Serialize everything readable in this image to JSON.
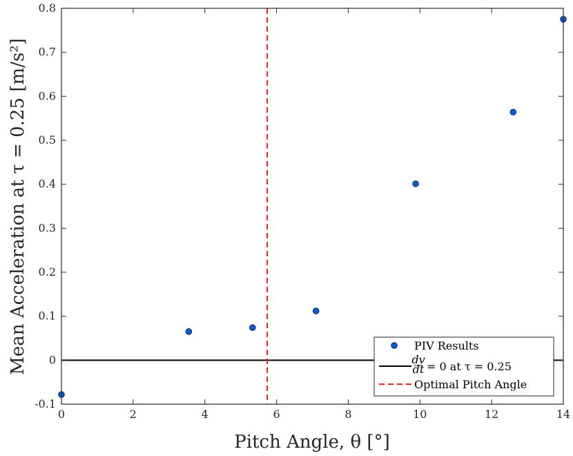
{
  "chart_data": {
    "type": "scatter",
    "xlabel": "Pitch Angle, θ [°]",
    "ylabel": "Mean Acceleration at τ = 0.25 [m/s²]",
    "xlim": [
      0,
      14
    ],
    "ylim": [
      -0.1,
      0.8
    ],
    "xticks": [
      0,
      2,
      4,
      6,
      8,
      10,
      12,
      14
    ],
    "yticks": [
      -0.1,
      0,
      0.1,
      0.2,
      0.3,
      0.4,
      0.5,
      0.6,
      0.7,
      0.8
    ],
    "xtick_labels": [
      "0",
      "2",
      "4",
      "6",
      "8",
      "10",
      "12",
      "14"
    ],
    "ytick_labels": [
      "-0.1",
      "0",
      "0.1",
      "0.2",
      "0.3",
      "0.4",
      "0.5",
      "0.6",
      "0.7",
      "0.8"
    ],
    "grid": false,
    "legend_position": "bottom-right",
    "series": [
      {
        "name": "PIV Results",
        "kind": "scatter",
        "color": "#0a5fd9",
        "x": [
          0.0,
          3.55,
          5.33,
          7.1,
          9.88,
          12.6,
          14.0
        ],
        "y": [
          -0.078,
          0.065,
          0.074,
          0.112,
          0.401,
          0.564,
          0.775
        ]
      },
      {
        "name": "dv/dt = 0 at τ = 0.25",
        "kind": "hline",
        "color": "#000000",
        "y": 0
      },
      {
        "name": "Optimal Pitch Angle",
        "kind": "vline",
        "color": "#e8231f",
        "dash": true,
        "x": 5.74
      }
    ],
    "legend": [
      {
        "label_text": "PIV Results",
        "kind": "marker"
      },
      {
        "label_text": "= 0 at τ = 0.25",
        "frac_num": "dv",
        "frac_den": "dt",
        "kind": "line"
      },
      {
        "label_text": "Optimal Pitch Angle",
        "kind": "dash"
      }
    ]
  }
}
